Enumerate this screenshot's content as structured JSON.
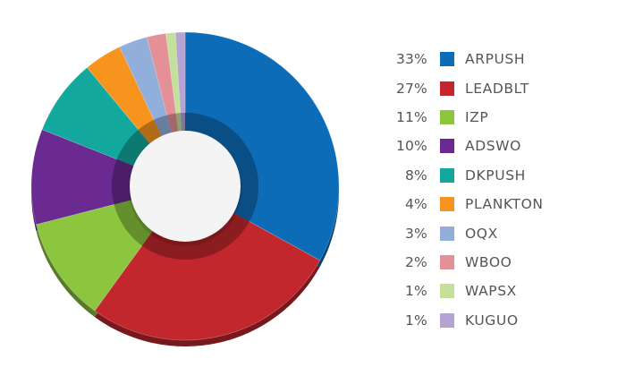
{
  "chart_data": {
    "type": "pie",
    "title": "",
    "slices": [
      {
        "label": "ARPUSH",
        "pct_label": "33%",
        "value": 33,
        "color": "#0d6cb8"
      },
      {
        "label": "LEADBLT",
        "pct_label": "27%",
        "value": 27,
        "color": "#c1272d"
      },
      {
        "label": "IZP",
        "pct_label": "11%",
        "value": 11,
        "color": "#8cc63f"
      },
      {
        "label": "ADSWO",
        "pct_label": "10%",
        "value": 10,
        "color": "#6a2a91"
      },
      {
        "label": "DKPUSH",
        "pct_label": "8%",
        "value": 8,
        "color": "#12a89d"
      },
      {
        "label": "PLANKTON",
        "pct_label": "4%",
        "value": 4,
        "color": "#f7941d"
      },
      {
        "label": "OQX",
        "pct_label": "3%",
        "value": 3,
        "color": "#92aedb"
      },
      {
        "label": "WBOO",
        "pct_label": "2%",
        "value": 2,
        "color": "#e39196"
      },
      {
        "label": "WAPSX",
        "pct_label": "1%",
        "value": 1,
        "color": "#c5e09b"
      },
      {
        "label": "KUGUO",
        "pct_label": "1%",
        "value": 1,
        "color": "#b3a4d3"
      }
    ],
    "legend_position": "right",
    "style": "donut"
  }
}
